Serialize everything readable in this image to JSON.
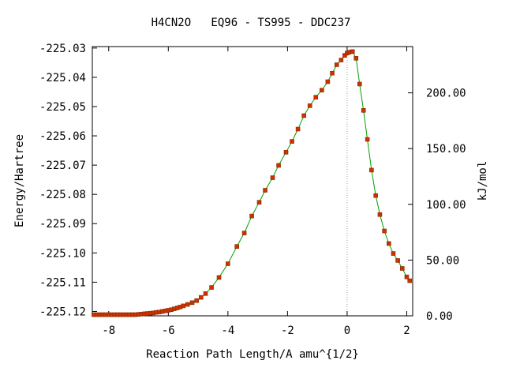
{
  "chart_data": {
    "type": "line",
    "title": "H4CN2O   EQ96 - TS995 - DDC237",
    "xlabel": "Reaction Path Length/A amu^{1/2}",
    "ylabel": "Energy/Hartree",
    "y2label": "kJ/mol",
    "xlim": [
      -8.55,
      2.2
    ],
    "ylim": [
      -225.1215,
      -225.0295
    ],
    "y2lim": [
      0,
      241.5
    ],
    "x_ticks": [
      {
        "value": -8,
        "label": "-8"
      },
      {
        "value": -6,
        "label": "-6"
      },
      {
        "value": -4,
        "label": "-4"
      },
      {
        "value": -2,
        "label": "-2"
      },
      {
        "value": 0,
        "label": "0"
      },
      {
        "value": 2,
        "label": "2"
      }
    ],
    "y_ticks": [
      {
        "value": -225.03,
        "label": "-225.03"
      },
      {
        "value": -225.04,
        "label": "-225.04"
      },
      {
        "value": -225.05,
        "label": "-225.05"
      },
      {
        "value": -225.06,
        "label": "-225.06"
      },
      {
        "value": -225.07,
        "label": "-225.07"
      },
      {
        "value": -225.08,
        "label": "-225.08"
      },
      {
        "value": -225.09,
        "label": "-225.09"
      },
      {
        "value": -225.1,
        "label": "-225.10"
      },
      {
        "value": -225.11,
        "label": "-225.11"
      },
      {
        "value": -225.12,
        "label": "-225.12"
      }
    ],
    "y2_ticks": [
      {
        "value": 0,
        "label": "0.00"
      },
      {
        "value": 50,
        "label": "50.00"
      },
      {
        "value": 100,
        "label": "100.00"
      },
      {
        "value": 150,
        "label": "150.00"
      },
      {
        "value": 200,
        "label": "200.00"
      }
    ],
    "ts_marker_x": 0,
    "grid": false,
    "colors": {
      "line": "#00a000",
      "marker": "#d03000",
      "marker_edge": "#803000",
      "ts_line": "#888888"
    },
    "series": [
      {
        "x": [
          -8.5,
          -8.4,
          -8.3,
          -8.2,
          -8.1,
          -8.0,
          -7.9,
          -7.8,
          -7.7,
          -7.6,
          -7.5,
          -7.4,
          -7.3,
          -7.2,
          -7.1,
          -7.0,
          -6.9,
          -6.8,
          -6.7,
          -6.6,
          -6.5,
          -6.4,
          -6.3,
          -6.2,
          -6.1,
          -6.0,
          -5.9,
          -5.8,
          -5.7,
          -5.6,
          -5.5,
          -5.35,
          -5.2,
          -5.05,
          -4.9,
          -4.75,
          -4.55,
          -4.3,
          -4.0,
          -3.7,
          -3.45,
          -3.2,
          -2.95,
          -2.75,
          -2.5,
          -2.3,
          -2.05,
          -1.85,
          -1.65,
          -1.45,
          -1.25,
          -1.05,
          -0.85,
          -0.65,
          -0.5,
          -0.35,
          -0.2,
          -0.08,
          0.0,
          0.07,
          0.18,
          0.3,
          0.42,
          0.55,
          0.68,
          0.82,
          0.96,
          1.1,
          1.25,
          1.4,
          1.55,
          1.7,
          1.85,
          2.0,
          2.1
        ],
        "y": [
          -225.1211,
          -225.1211,
          -225.1211,
          -225.1211,
          -225.1211,
          -225.1211,
          -225.1211,
          -225.1211,
          -225.1211,
          -225.1211,
          -225.1211,
          -225.1211,
          -225.1211,
          -225.1211,
          -225.1211,
          -225.121,
          -225.1209,
          -225.1208,
          -225.1207,
          -225.1206,
          -225.1205,
          -225.1203,
          -225.1202,
          -225.12,
          -225.1198,
          -225.1196,
          -225.1194,
          -225.1191,
          -225.1188,
          -225.1185,
          -225.1181,
          -225.1176,
          -225.117,
          -225.1163,
          -225.1152,
          -225.1139,
          -225.1118,
          -225.1084,
          -225.1037,
          -225.0978,
          -225.0932,
          -225.0874,
          -225.0827,
          -225.0786,
          -225.0743,
          -225.0701,
          -225.0656,
          -225.0619,
          -225.0577,
          -225.0531,
          -225.0497,
          -225.0468,
          -225.0444,
          -225.0415,
          -225.0386,
          -225.0357,
          -225.0341,
          -225.0325,
          -225.0317,
          -225.0314,
          -225.0312,
          -225.0335,
          -225.0423,
          -225.0513,
          -225.0612,
          -225.0717,
          -225.0804,
          -225.0869,
          -225.0925,
          -225.0968,
          -225.1002,
          -225.1026,
          -225.1053,
          -225.1082,
          -225.1095
        ]
      }
    ]
  }
}
